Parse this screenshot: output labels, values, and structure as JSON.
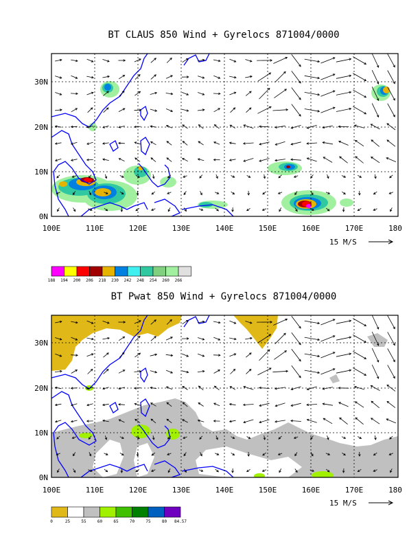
{
  "maps": [
    {
      "title": "BT CLAUS 850 Wind + Gyrelocs 871004/0000",
      "x_ticks": [
        "100E",
        "110E",
        "120E",
        "130E",
        "140E",
        "150E",
        "160E",
        "170E",
        "180"
      ],
      "y_ticks": [
        "0N",
        "10N",
        "20N",
        "30N"
      ],
      "lon_range": [
        100,
        180
      ],
      "lat_range": [
        0,
        36
      ],
      "vector_key": "15 M/S",
      "colorbar": {
        "labels": [
          "188",
          "194",
          "200",
          "206",
          "218",
          "230",
          "242",
          "248",
          "254",
          "260",
          "266"
        ],
        "colors": [
          "#ff00ff",
          "#ffff00",
          "#ff0000",
          "#a00000",
          "#e6b400",
          "#0080e0",
          "#40f0f0",
          "#30c8a0",
          "#80d080",
          "#a0f0a0",
          "#e0e0e0"
        ]
      }
    },
    {
      "title": "BT Pwat 850 Wind + Gyrelocs 871004/0000",
      "x_ticks": [
        "100E",
        "110E",
        "120E",
        "130E",
        "140E",
        "150E",
        "160E",
        "170E",
        "180"
      ],
      "y_ticks": [
        "0N",
        "10N",
        "20N",
        "30N"
      ],
      "lon_range": [
        100,
        180
      ],
      "lat_range": [
        0,
        36
      ],
      "vector_key": "15 M/S",
      "colorbar": {
        "labels": [
          "0",
          "25",
          "55",
          "60",
          "65",
          "70",
          "75",
          "80",
          "84.57"
        ],
        "colors": [
          "#e0b818",
          "#ffffff",
          "#c0c0c0",
          "#a0f000",
          "#40c000",
          "#008000",
          "#0060c0",
          "#7000c0"
        ]
      }
    }
  ]
}
